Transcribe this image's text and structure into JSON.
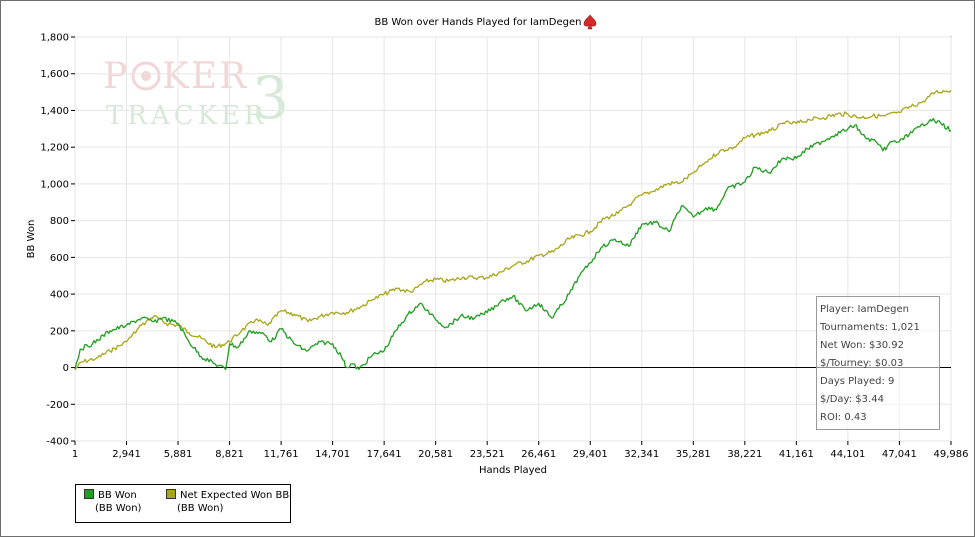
{
  "chart_data": {
    "type": "line",
    "title": "BB Won over Hands Played for IamDegen",
    "xlabel": "Hands Played",
    "ylabel": "BB Won",
    "xlim": [
      1,
      49986
    ],
    "ylim": [
      -400,
      1800
    ],
    "x_ticks": [
      "1",
      "2,941",
      "5,881",
      "8,821",
      "11,761",
      "14,701",
      "17,641",
      "20,581",
      "23,521",
      "26,461",
      "29,401",
      "32,341",
      "35,281",
      "38,221",
      "41,161",
      "44,101",
      "47,041",
      "49,986"
    ],
    "y_ticks": [
      "-400",
      "-200",
      "0",
      "200",
      "400",
      "600",
      "800",
      "1,000",
      "1,200",
      "1,400",
      "1,600",
      "1,800"
    ],
    "grid": true,
    "legend_position": "bottom-left",
    "series": [
      {
        "name": "BB Won",
        "sublabel": "(BB Won)",
        "color": "#1f9e1f",
        "x": [
          1,
          300,
          1000,
          2000,
          2941,
          3800,
          4500,
          5000,
          5881,
          6500,
          7200,
          8000,
          8600,
          8821,
          9300,
          10000,
          10800,
          11200,
          11761,
          12500,
          13200,
          14000,
          14701,
          15200,
          15500,
          15800,
          16200,
          17000,
          17641,
          18300,
          19000,
          19700,
          20581,
          21200,
          22000,
          22800,
          23521,
          24300,
          25000,
          25700,
          26461,
          27200,
          27600,
          28200,
          28800,
          29401,
          30000,
          30800,
          31600,
          32341,
          33100,
          33900,
          34600,
          35281,
          36000,
          36600,
          37200,
          38221,
          38800,
          39600,
          40400,
          41161,
          41800,
          42600,
          43400,
          44101,
          44500,
          45100,
          45700,
          46100,
          46600,
          47041,
          47600,
          48200,
          48800,
          49400,
          49986
        ],
        "values": [
          -10,
          100,
          130,
          200,
          230,
          270,
          250,
          270,
          240,
          140,
          60,
          20,
          -10,
          130,
          110,
          200,
          180,
          140,
          210,
          130,
          90,
          140,
          130,
          60,
          0,
          20,
          -10,
          70,
          90,
          200,
          290,
          350,
          260,
          220,
          280,
          270,
          300,
          360,
          390,
          310,
          350,
          270,
          320,
          400,
          500,
          570,
          650,
          700,
          660,
          780,
          790,
          740,
          880,
          820,
          870,
          860,
          970,
          1010,
          1090,
          1060,
          1140,
          1140,
          1190,
          1230,
          1270,
          1300,
          1320,
          1250,
          1230,
          1180,
          1230,
          1230,
          1270,
          1310,
          1350,
          1330,
          1290
        ]
      },
      {
        "name": "Net Expected Won BB",
        "sublabel": "(BB Won)",
        "color": "#a8a617",
        "x": [
          1,
          400,
          1200,
          2000,
          2941,
          3800,
          4500,
          5200,
          5881,
          6500,
          7200,
          8000,
          8821,
          9500,
          10300,
          11000,
          11761,
          12500,
          13300,
          14000,
          14701,
          15500,
          16300,
          17000,
          17641,
          18400,
          19200,
          20000,
          20581,
          21300,
          22100,
          23000,
          23521,
          24300,
          25100,
          25800,
          26461,
          27300,
          28200,
          29401,
          30200,
          31000,
          31800,
          32341,
          33000,
          33800,
          34600,
          35281,
          36000,
          36800,
          37600,
          38221,
          38900,
          39700,
          40500,
          41161,
          41900,
          42700,
          43500,
          44101,
          44800,
          45500,
          46200,
          47041,
          47700,
          48400,
          49100,
          49986
        ],
        "values": [
          -10,
          30,
          50,
          90,
          140,
          230,
          280,
          240,
          230,
          190,
          160,
          110,
          140,
          200,
          260,
          230,
          310,
          290,
          250,
          280,
          300,
          300,
          330,
          370,
          400,
          430,
          410,
          470,
          480,
          470,
          490,
          490,
          490,
          520,
          560,
          580,
          610,
          630,
          700,
          740,
          810,
          840,
          900,
          940,
          960,
          1000,
          1010,
          1060,
          1120,
          1180,
          1200,
          1250,
          1270,
          1290,
          1330,
          1330,
          1350,
          1360,
          1380,
          1380,
          1360,
          1370,
          1370,
          1390,
          1420,
          1450,
          1500,
          1510
        ]
      }
    ]
  },
  "stats": [
    "Player: IamDegen",
    "Tournaments: 1,021",
    "Net Won: $30.92",
    "$/Tourney: $0.03",
    "Days Played: 9",
    "$/Day: $3.44",
    "ROI: 0.43"
  ],
  "watermark_logo": "POKER TRACKER 3",
  "spade_icon_color": "#d42a2a"
}
